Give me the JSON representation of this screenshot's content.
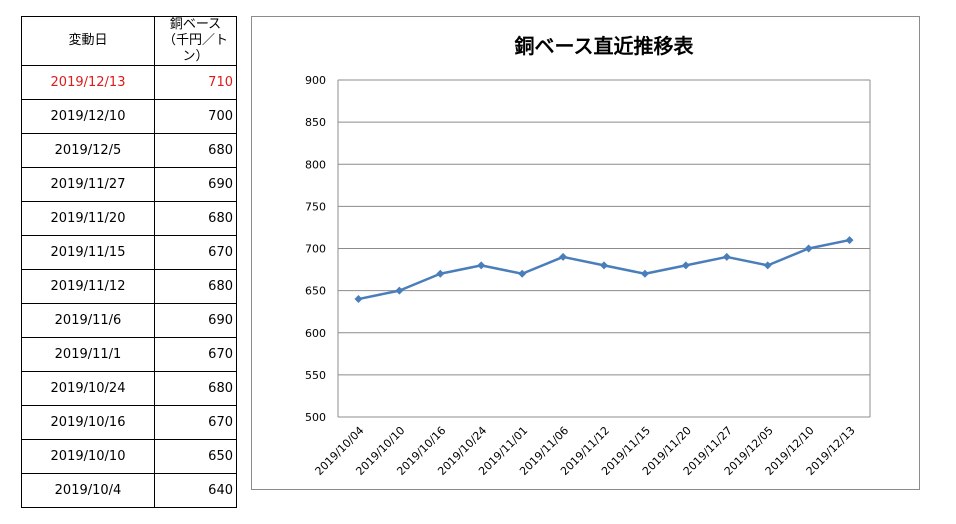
{
  "table": {
    "header": {
      "date": "変動日",
      "value_line1": "銅ベース",
      "value_line2": "（千円／トン）"
    },
    "highlight_color": "#e01a1a",
    "rows": [
      {
        "date": "2019/12/13",
        "value": "710",
        "highlight": true
      },
      {
        "date": "2019/12/10",
        "value": "700"
      },
      {
        "date": "2019/12/5",
        "value": "680"
      },
      {
        "date": "2019/11/27",
        "value": "690"
      },
      {
        "date": "2019/11/20",
        "value": "680"
      },
      {
        "date": "2019/11/15",
        "value": "670"
      },
      {
        "date": "2019/11/12",
        "value": "680"
      },
      {
        "date": "2019/11/6",
        "value": "690"
      },
      {
        "date": "2019/11/1",
        "value": "670"
      },
      {
        "date": "2019/10/24",
        "value": "680"
      },
      {
        "date": "2019/10/16",
        "value": "670"
      },
      {
        "date": "2019/10/10",
        "value": "650"
      },
      {
        "date": "2019/10/4",
        "value": "640"
      }
    ]
  },
  "chart_data": {
    "type": "line",
    "title": "銅ベース直近推移表",
    "xlabel": "",
    "ylabel": "",
    "categories": [
      "2019/10/04",
      "2019/10/10",
      "2019/10/16",
      "2019/10/24",
      "2019/11/01",
      "2019/11/06",
      "2019/11/12",
      "2019/11/15",
      "2019/11/20",
      "2019/11/27",
      "2019/12/05",
      "2019/12/10",
      "2019/12/13"
    ],
    "series": [
      {
        "values": [
          640,
          650,
          670,
          680,
          670,
          690,
          680,
          670,
          680,
          690,
          680,
          700,
          710
        ]
      }
    ],
    "ylim": [
      500,
      900
    ],
    "yticks": [
      500,
      550,
      600,
      650,
      700,
      750,
      800,
      850,
      900
    ],
    "grid": "horizontal",
    "legend": "none",
    "line_color": "#4a7ebb",
    "grid_color": "#8c8c8c"
  }
}
